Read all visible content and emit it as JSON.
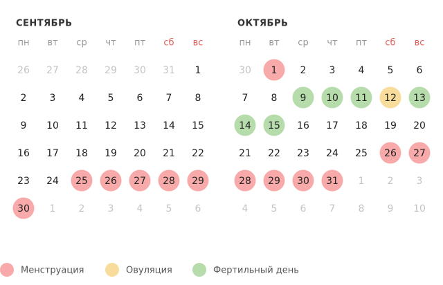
{
  "months": [
    {
      "title": "СЕНТЯБРЬ",
      "weekdays": [
        {
          "label": "пн"
        },
        {
          "label": "вт"
        },
        {
          "label": "ср"
        },
        {
          "label": "чт"
        },
        {
          "label": "пт"
        },
        {
          "label": "сб",
          "color": "#e0605c"
        },
        {
          "label": "вс",
          "color": "#e0605c"
        }
      ],
      "weeks": [
        [
          {
            "label": "26",
            "muted": true
          },
          {
            "label": "27",
            "muted": true
          },
          {
            "label": "28",
            "muted": true
          },
          {
            "label": "29",
            "muted": true
          },
          {
            "label": "30",
            "muted": true
          },
          {
            "label": "31",
            "muted": true
          },
          {
            "label": "1"
          }
        ],
        [
          {
            "label": "2"
          },
          {
            "label": "3"
          },
          {
            "label": "4"
          },
          {
            "label": "5"
          },
          {
            "label": "6"
          },
          {
            "label": "7"
          },
          {
            "label": "8"
          }
        ],
        [
          {
            "label": "9"
          },
          {
            "label": "10"
          },
          {
            "label": "11"
          },
          {
            "label": "12"
          },
          {
            "label": "13"
          },
          {
            "label": "14"
          },
          {
            "label": "15"
          }
        ],
        [
          {
            "label": "16"
          },
          {
            "label": "17"
          },
          {
            "label": "18"
          },
          {
            "label": "19"
          },
          {
            "label": "20"
          },
          {
            "label": "21"
          },
          {
            "label": "22"
          }
        ],
        [
          {
            "label": "23"
          },
          {
            "label": "24"
          },
          {
            "label": "25",
            "color": "#f7aaa9"
          },
          {
            "label": "26",
            "color": "#f7aaa9"
          },
          {
            "label": "27",
            "color": "#f7aaa9"
          },
          {
            "label": "28",
            "color": "#f7aaa9"
          },
          {
            "label": "29",
            "color": "#f7aaa9"
          }
        ],
        [
          {
            "label": "30",
            "color": "#f7aaa9"
          },
          {
            "label": "1",
            "muted": true
          },
          {
            "label": "2",
            "muted": true
          },
          {
            "label": "3",
            "muted": true
          },
          {
            "label": "4",
            "muted": true
          },
          {
            "label": "5",
            "muted": true
          },
          {
            "label": "6",
            "muted": true
          }
        ]
      ]
    },
    {
      "title": "ОКТЯБРЬ",
      "weekdays": [
        {
          "label": "пн"
        },
        {
          "label": "вт"
        },
        {
          "label": "ср"
        },
        {
          "label": "чт"
        },
        {
          "label": "пт"
        },
        {
          "label": "сб",
          "color": "#e0605c"
        },
        {
          "label": "вс",
          "color": "#e0605c"
        }
      ],
      "weeks": [
        [
          {
            "label": "30",
            "muted": true
          },
          {
            "label": "1",
            "color": "#f7aaa9"
          },
          {
            "label": "2"
          },
          {
            "label": "3"
          },
          {
            "label": "4"
          },
          {
            "label": "5"
          },
          {
            "label": "6"
          }
        ],
        [
          {
            "label": "7"
          },
          {
            "label": "8"
          },
          {
            "label": "9",
            "color": "#b7dcab"
          },
          {
            "label": "10",
            "color": "#b7dcab"
          },
          {
            "label": "11",
            "color": "#b7dcab"
          },
          {
            "label": "12",
            "color": "#f8dc9c"
          },
          {
            "label": "13",
            "color": "#b7dcab"
          }
        ],
        [
          {
            "label": "14",
            "color": "#b7dcab"
          },
          {
            "label": "15",
            "color": "#b7dcab"
          },
          {
            "label": "16"
          },
          {
            "label": "17"
          },
          {
            "label": "18"
          },
          {
            "label": "19"
          },
          {
            "label": "20"
          }
        ],
        [
          {
            "label": "21"
          },
          {
            "label": "22"
          },
          {
            "label": "23"
          },
          {
            "label": "24"
          },
          {
            "label": "25"
          },
          {
            "label": "26",
            "color": "#f7aaa9"
          },
          {
            "label": "27",
            "color": "#f7aaa9"
          }
        ],
        [
          {
            "label": "28",
            "color": "#f7aaa9"
          },
          {
            "label": "29",
            "color": "#f7aaa9"
          },
          {
            "label": "30",
            "color": "#f7aaa9"
          },
          {
            "label": "31",
            "color": "#f7aaa9"
          },
          {
            "label": "1",
            "muted": true
          },
          {
            "label": "2",
            "muted": true
          },
          {
            "label": "3",
            "muted": true
          }
        ],
        [
          {
            "label": "4",
            "muted": true
          },
          {
            "label": "5",
            "muted": true
          },
          {
            "label": "6",
            "muted": true
          },
          {
            "label": "7",
            "muted": true
          },
          {
            "label": "8",
            "muted": true
          },
          {
            "label": "9",
            "muted": true
          },
          {
            "label": "10",
            "muted": true
          }
        ]
      ]
    }
  ],
  "legend": [
    {
      "label": "Менструация",
      "color": "#f7aaa9"
    },
    {
      "label": "Овуляция",
      "color": "#f8dc9c"
    },
    {
      "label": "Фертильный день",
      "color": "#b7dcab"
    }
  ]
}
